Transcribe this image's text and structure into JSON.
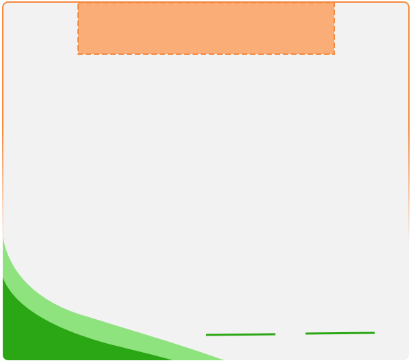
{
  "colors": {
    "card_background": "#f2f2f2",
    "card_border": "#f4893f",
    "header_fill": "#fbad78",
    "header_border": "#f4893f",
    "wave_light": "#8ee37e",
    "wave_dark": "#2ba614",
    "line_accent": "#2ba614"
  }
}
